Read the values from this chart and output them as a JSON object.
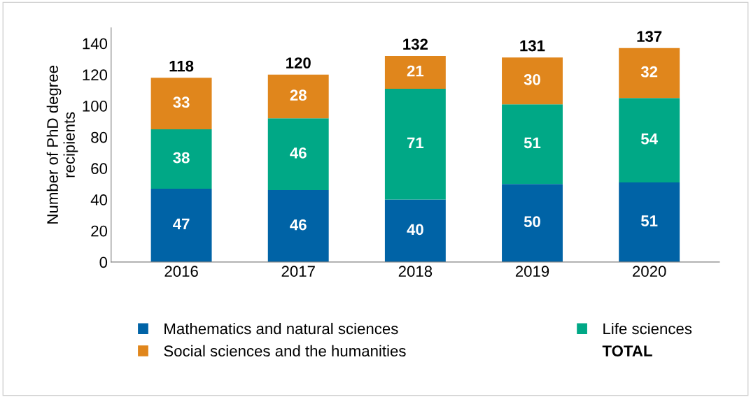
{
  "chart_data": {
    "type": "bar",
    "stacked": true,
    "ylabel": "Number of PhD degree\nrecipients",
    "categories": [
      "2016",
      "2017",
      "2018",
      "2019",
      "2020"
    ],
    "series": [
      {
        "name": "Mathematics and natural sciences",
        "color": "#0063a6",
        "values": [
          47,
          46,
          40,
          50,
          51
        ]
      },
      {
        "name": "Life sciences",
        "color": "#00a886",
        "values": [
          38,
          46,
          71,
          51,
          54
        ]
      },
      {
        "name": "Social sciences and the humanities",
        "color": "#e0861c",
        "values": [
          33,
          28,
          21,
          30,
          32
        ]
      }
    ],
    "totals": [
      "118",
      "120",
      "132",
      "131",
      "137"
    ],
    "annotations": [
      "TOTAL"
    ],
    "data_labels": true,
    "ylim": [
      0,
      150
    ],
    "yticks": [
      0,
      20,
      40,
      60,
      80,
      100,
      120,
      140
    ],
    "grid": false,
    "legend": "bottom"
  }
}
